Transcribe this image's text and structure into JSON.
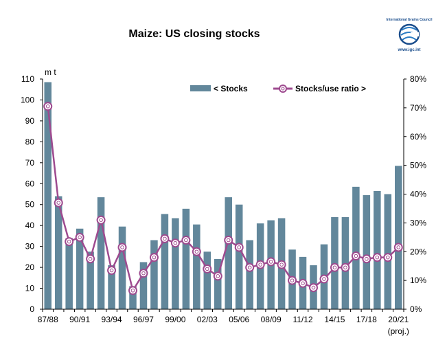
{
  "chart_data": {
    "type": "bar",
    "title": "Maize: US closing stocks",
    "left_unit": "m t",
    "x_labels": [
      "87/88",
      "90/91",
      "93/94",
      "96/97",
      "99/00",
      "02/03",
      "05/06",
      "08/09",
      "11/12",
      "14/15",
      "17/18",
      "20/21"
    ],
    "x_label_note": "(proj.)",
    "categories": [
      "87/88",
      "88/89",
      "89/90",
      "90/91",
      "91/92",
      "92/93",
      "93/94",
      "94/95",
      "95/96",
      "96/97",
      "97/98",
      "98/99",
      "99/00",
      "00/01",
      "01/02",
      "02/03",
      "03/04",
      "04/05",
      "05/06",
      "06/07",
      "07/08",
      "08/09",
      "09/10",
      "10/11",
      "11/12",
      "12/13",
      "13/14",
      "14/15",
      "15/16",
      "16/17",
      "17/18",
      "18/19",
      "19/20",
      "20/21"
    ],
    "series": [
      {
        "name": "< Stocks",
        "kind": "bar",
        "axis": "left",
        "color": "#62879b",
        "values": [
          108.5,
          54,
          34,
          38.5,
          27.5,
          53.5,
          21,
          39.5,
          11,
          22.5,
          33,
          45.5,
          43.5,
          48,
          40.5,
          27.5,
          24,
          53.5,
          50,
          33,
          41,
          42.5,
          43.5,
          28.5,
          25,
          21,
          31,
          44,
          44,
          58.5,
          54.5,
          56.5,
          55,
          68.5
        ]
      },
      {
        "name": "Stocks/use ratio >",
        "kind": "line",
        "axis": "right",
        "color": "#9e4a8f",
        "values": [
          70.5,
          37,
          23.5,
          25,
          17.5,
          31,
          13.5,
          21.5,
          6.5,
          12.5,
          18,
          24.5,
          23,
          24,
          20,
          14,
          11.5,
          24,
          21.5,
          14.5,
          15.5,
          16.5,
          15.5,
          10,
          9,
          7.5,
          10.5,
          14.5,
          14.5,
          18.5,
          17.5,
          18,
          18,
          21.5
        ]
      }
    ],
    "left_ylim": [
      0,
      110
    ],
    "left_ticks": [
      0,
      10,
      20,
      30,
      40,
      50,
      60,
      70,
      80,
      90,
      100,
      110
    ],
    "right_ylim": [
      0,
      80
    ],
    "right_ticks": [
      "0%",
      "10%",
      "20%",
      "30%",
      "40%",
      "50%",
      "60%",
      "70%",
      "80%"
    ],
    "grid": false,
    "legend_placement": "top-right"
  },
  "logo": {
    "name": "International Grains Council",
    "url": "www.igc.int",
    "icon": "igc-globe-logo"
  }
}
